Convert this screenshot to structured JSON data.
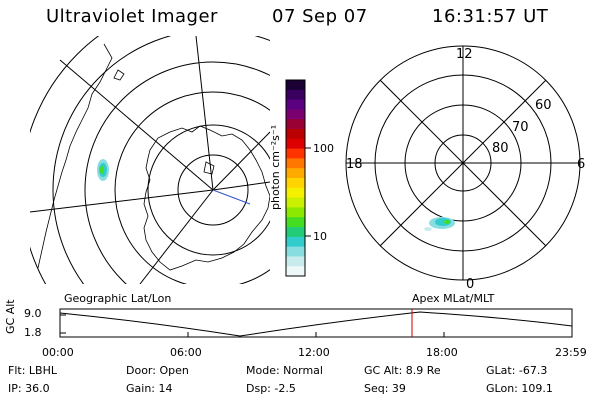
{
  "header": {
    "title": "Ultraviolet Imager",
    "date": "07 Sep 07",
    "time": "16:31:57 UT"
  },
  "colorbar": {
    "unit_label": "photon cm⁻²s⁻¹",
    "ticks": [
      "100",
      "10"
    ],
    "colors": [
      "#1a0033",
      "#3a0060",
      "#5a0080",
      "#7a0070",
      "#990033",
      "#bb0000",
      "#dd0000",
      "#ff3300",
      "#ff7700",
      "#ffaa00",
      "#ffd400",
      "#f4f000",
      "#c8f000",
      "#8ce800",
      "#44dd22",
      "#22cc77",
      "#33cccc",
      "#88dde0",
      "#c8ecee",
      "#eef8f8"
    ]
  },
  "polar": {
    "labels": {
      "top": "12",
      "left": "18",
      "right": "6",
      "bottom": "0"
    },
    "rings": [
      "80",
      "70",
      "60"
    ]
  },
  "timeline": {
    "left_label": "Geographic Lat/Lon",
    "right_label": "Apex MLat/MLT",
    "y_axis_title": "GC Alt",
    "y_ticks": [
      "9.0",
      "1.8"
    ],
    "x_ticks": [
      "00:00",
      "06:00",
      "12:00",
      "18:00",
      "23:59"
    ],
    "marker_color": "#cc0000"
  },
  "info": {
    "filter": "Flt: LBHL",
    "ip": "IP: 36.0",
    "door": "Door: Open",
    "gain": "Gain: 14",
    "mode": "Mode: Normal",
    "dsp": "Dsp:    -2.5",
    "gc_alt": "GC Alt: 8.9 Re",
    "seq": "Seq: 39",
    "glat": "GLat: -67.3",
    "glon": "GLon: 109.1"
  }
}
